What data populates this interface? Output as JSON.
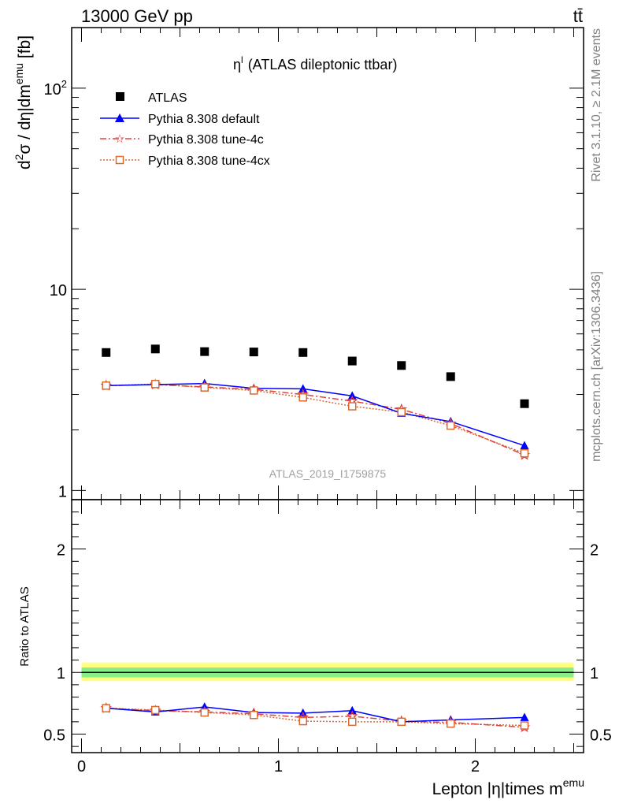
{
  "header": {
    "left": "13000 GeV pp",
    "right": "tt̄"
  },
  "side_labels": {
    "rivet": "Rivet 3.1.10, ≥ 2.1M events",
    "mcplots": "mcplots.cern.ch [arXiv:1306.3436]"
  },
  "watermark": "ATLAS_2019_I1759875",
  "chart_data": [
    {
      "type": "scatter",
      "panel": "main",
      "title": "η",
      "title_sup": "l",
      "title_rest": "(ATLAS dileptonic ttbar)",
      "ylabel_parts": [
        "d",
        "2",
        "σ / dη|dm",
        "emu",
        " [fb]"
      ],
      "yscale": "log",
      "ylim": [
        0.9,
        200
      ],
      "xlim": [
        -0.05,
        2.55
      ],
      "y_ticks": [
        {
          "value": 1,
          "label": "1"
        },
        {
          "value": 10,
          "label": "10"
        },
        {
          "value": 100,
          "label": "10",
          "sup": "2"
        }
      ],
      "legend_position": "top-left",
      "x": [
        0.125,
        0.375,
        0.625,
        0.875,
        1.125,
        1.375,
        1.625,
        1.875,
        2.25
      ],
      "series": [
        {
          "name": "ATLAS",
          "color": "#000000",
          "marker": "square-filled",
          "line": "none",
          "values": [
            4.85,
            5.05,
            4.9,
            4.88,
            4.85,
            4.4,
            4.18,
            3.68,
            2.7
          ]
        },
        {
          "name": "Pythia 8.308 default",
          "color": "#0000ff",
          "marker": "triangle-filled",
          "line": "solid",
          "values": [
            3.32,
            3.36,
            3.4,
            3.22,
            3.2,
            2.95,
            2.42,
            2.2,
            1.67
          ]
        },
        {
          "name": "Pythia 8.308 tune-4c",
          "color": "#e04040",
          "marker": "star",
          "line": "dashdot",
          "values": [
            3.32,
            3.36,
            3.27,
            3.18,
            3.0,
            2.78,
            2.53,
            2.15,
            1.5
          ]
        },
        {
          "name": "Pythia 8.308 tune-4cx",
          "color": "#d86a30",
          "marker": "square-open",
          "line": "dotted",
          "values": [
            3.32,
            3.38,
            3.25,
            3.14,
            2.9,
            2.62,
            2.45,
            2.1,
            1.53
          ]
        }
      ]
    },
    {
      "type": "scatter",
      "panel": "ratio",
      "ylabel": "Ratio to ATLAS",
      "xlabel_parts": [
        "Lepton |η|times m",
        "emu"
      ],
      "ylim": [
        0.35,
        2.4
      ],
      "xlim": [
        -0.05,
        2.55
      ],
      "y_ticks": [
        {
          "value": 0.5,
          "label": "0.5"
        },
        {
          "value": 1,
          "label": "1"
        },
        {
          "value": 2,
          "label": "2"
        }
      ],
      "x_ticks": [
        {
          "value": 0,
          "label": "0"
        },
        {
          "value": 1,
          "label": "1"
        },
        {
          "value": 2,
          "label": "2"
        }
      ],
      "band_inner": [
        0.96,
        1.04
      ],
      "band_outer": [
        0.93,
        1.08
      ],
      "band_colors": {
        "inner": "#88ee88",
        "outer": "#ffff80"
      },
      "x": [
        0.125,
        0.375,
        0.625,
        0.875,
        1.125,
        1.375,
        1.625,
        1.875,
        2.25
      ],
      "series": [
        {
          "name": "Pythia 8.308 default",
          "values": [
            0.71,
            0.68,
            0.72,
            0.675,
            0.67,
            0.69,
            0.6,
            0.615,
            0.635
          ]
        },
        {
          "name": "Pythia 8.308 tune-4c",
          "values": [
            0.71,
            0.69,
            0.68,
            0.665,
            0.635,
            0.645,
            0.605,
            0.595,
            0.555
          ]
        },
        {
          "name": "Pythia 8.308 tune-4cx",
          "values": [
            0.71,
            0.695,
            0.675,
            0.655,
            0.605,
            0.6,
            0.6,
            0.585,
            0.57
          ]
        }
      ]
    }
  ]
}
